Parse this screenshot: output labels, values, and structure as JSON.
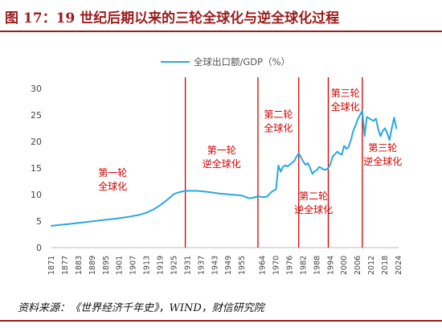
{
  "header": {
    "title": "图 17：19 世纪后期以来的三轮全球化与逆全球化过程"
  },
  "source": "资料来源：《世界经济千年史》，WIND，财信研究院",
  "colors": {
    "line": "#29a8df",
    "annotation": "#d40000",
    "title": "#9a1c1c",
    "axis": "#bbbbbb"
  },
  "chart_data": {
    "type": "line",
    "title": "",
    "xlabel": "",
    "ylabel": "",
    "xlim": [
      1871,
      2024
    ],
    "ylim": [
      0,
      30
    ],
    "yticks": [
      0,
      5,
      10,
      15,
      20,
      25,
      30
    ],
    "xticks": [
      1871,
      1877,
      1883,
      1889,
      1895,
      1901,
      1907,
      1913,
      1919,
      1925,
      1931,
      1937,
      1943,
      1949,
      1955,
      1964,
      1970,
      1976,
      1982,
      1988,
      1994,
      2000,
      2006,
      2012,
      2018,
      2024
    ],
    "grid": false,
    "legend": {
      "position": "top",
      "entries": [
        "全球出口额/GDP（%）"
      ]
    },
    "series": [
      {
        "name": "全球出口额/GDP（%）",
        "x": [
          1871,
          1880,
          1890,
          1900,
          1905,
          1910,
          1913,
          1916,
          1919,
          1922,
          1925,
          1927,
          1929,
          1931,
          1935,
          1940,
          1945,
          1950,
          1955,
          1958,
          1960,
          1962,
          1964,
          1966,
          1968,
          1970,
          1971,
          1972,
          1973,
          1974,
          1975,
          1976,
          1977,
          1978,
          1979,
          1980,
          1981,
          1982,
          1983,
          1984,
          1985,
          1986,
          1987,
          1988,
          1989,
          1990,
          1991,
          1992,
          1993,
          1994,
          1995,
          1996,
          1997,
          1998,
          1999,
          2000,
          2001,
          2002,
          2003,
          2004,
          2005,
          2006,
          2007,
          2008,
          2009,
          2010,
          2011,
          2012,
          2013,
          2014,
          2015,
          2016,
          2017,
          2018,
          2019,
          2020,
          2021,
          2022,
          2023
        ],
        "values": [
          4.1,
          4.5,
          5.0,
          5.5,
          5.8,
          6.2,
          6.6,
          7.2,
          8.0,
          9.0,
          10.1,
          10.4,
          10.6,
          10.7,
          10.7,
          10.5,
          10.2,
          10.0,
          9.8,
          9.3,
          9.4,
          9.7,
          9.5,
          9.6,
          10.5,
          11.0,
          15.5,
          14.3,
          15.2,
          15.5,
          15.3,
          15.6,
          16.0,
          16.3,
          17.1,
          17.8,
          17.0,
          16.2,
          15.6,
          15.9,
          15.0,
          13.9,
          14.4,
          14.6,
          15.2,
          15.0,
          14.7,
          14.7,
          15.0,
          15.8,
          17.2,
          17.6,
          18.1,
          17.7,
          17.5,
          19.2,
          18.6,
          19.0,
          20.3,
          22.0,
          23.0,
          24.2,
          25.0,
          25.8,
          21.0,
          24.6,
          24.4,
          24.1,
          23.9,
          24.3,
          22.3,
          21.0,
          22.0,
          22.5,
          21.5,
          20.3,
          22.5,
          24.5,
          22.5
        ]
      }
    ],
    "dividers": [
      1930,
      1962,
      1980,
      1993,
      2008
    ],
    "annotations": [
      {
        "id": "ann1",
        "lines": [
          "第一轮",
          "全球化"
        ],
        "x": 1898,
        "y": 13.5
      },
      {
        "id": "ann2",
        "lines": [
          "第一轮",
          "逆全球化"
        ],
        "x": 1946,
        "y": 17.7
      },
      {
        "id": "ann3",
        "lines": [
          "第二轮",
          "全球化"
        ],
        "x": 1971,
        "y": 24.5
      },
      {
        "id": "ann4",
        "lines": [
          "第二轮",
          "逆全球化"
        ],
        "x": 1986.5,
        "y": 9.1
      },
      {
        "id": "ann5",
        "lines": [
          "第三轮",
          "全球化"
        ],
        "x": 2000.5,
        "y": 28.5
      },
      {
        "id": "ann6",
        "lines": [
          "第三轮",
          "逆全球化"
        ],
        "x": 2017,
        "y": 18.2
      }
    ]
  }
}
